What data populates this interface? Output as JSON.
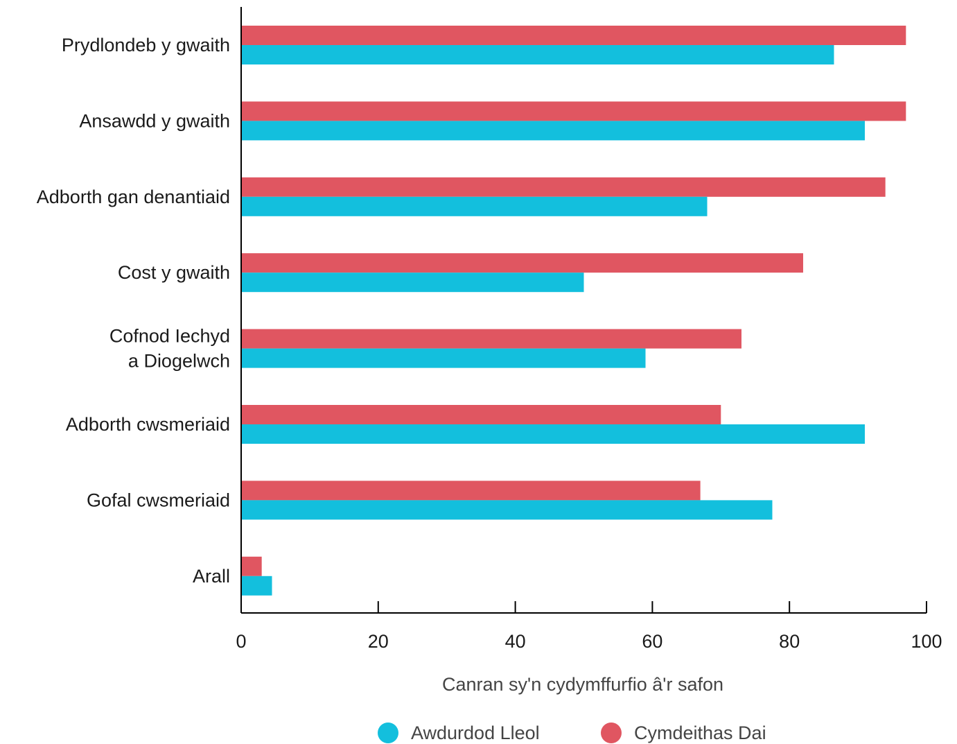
{
  "chart_data": {
    "type": "bar",
    "orientation": "horizontal",
    "categories": [
      [
        "Prydlondeb y gwaith"
      ],
      [
        "Ansawdd y gwaith"
      ],
      [
        "Adborth gan denantiaid"
      ],
      [
        "Cost y gwaith"
      ],
      [
        "Cofnod Iechyd",
        "a Diogelwch"
      ],
      [
        "Adborth cwsmeriaid"
      ],
      [
        "Gofal cwsmeriaid"
      ],
      [
        "Arall"
      ]
    ],
    "series": [
      {
        "name": "Cymdeithas Dai",
        "color": "#E05661",
        "values": [
          97,
          97,
          94,
          82,
          73,
          70,
          67,
          3
        ]
      },
      {
        "name": "Awdurdod Lleol",
        "color": "#13BFDD",
        "values": [
          86.5,
          91,
          68,
          50,
          59,
          91,
          77.5,
          4.5
        ]
      }
    ],
    "xlabel": "Canran sy'n cydymffurfio â'r safon",
    "xlim": [
      0,
      100
    ],
    "xticks": [
      "0",
      "20",
      "40",
      "60",
      "80",
      "100"
    ],
    "grid": false,
    "legend": {
      "position": "bottom",
      "items": [
        {
          "name": "Awdurdod Lleol",
          "color": "#13BFDD"
        },
        {
          "name": "Cymdeithas Dai",
          "color": "#E05661"
        }
      ]
    }
  }
}
